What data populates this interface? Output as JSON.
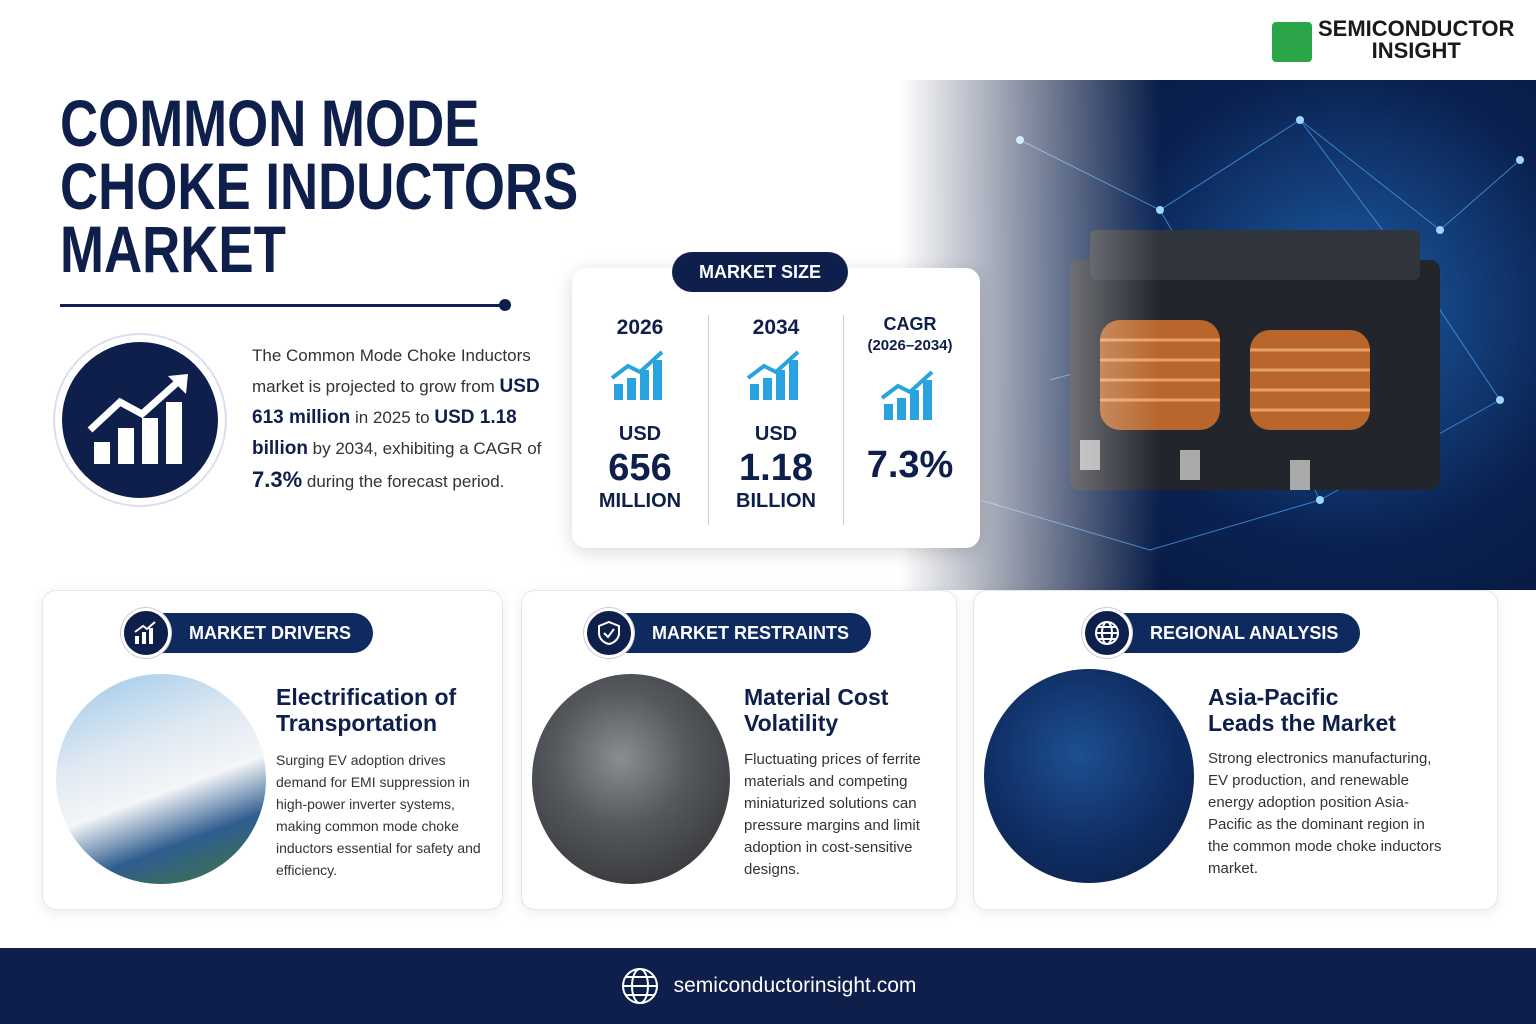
{
  "logo": {
    "line1": "SEMICONDUCTOR",
    "line2": "INSIGHT"
  },
  "title": [
    "COMMON MODE",
    "CHOKE INDUCTORS",
    "MARKET"
  ],
  "intro": {
    "lead": "The Common Mode Choke Inductors market is projected to grow from",
    "start_value": "USD 613 million",
    "start_text": "in 2025 to",
    "end_value": "USD 1.18 billion",
    "end_text": "by 2034,",
    "cagr_text": "exhibiting a CAGR of",
    "cagr_value": "7.3%",
    "tail": "during the forecast period."
  },
  "market_size": {
    "label": "MARKET SIZE",
    "columns": [
      {
        "year": "2026",
        "prefix": "USD",
        "value": "656",
        "unit": "MILLION"
      },
      {
        "year": "2034",
        "prefix": "USD",
        "value": "1.18",
        "unit": "BILLION"
      },
      {
        "year": "CAGR",
        "period": "(2026–2034)",
        "value": "7.3%"
      }
    ]
  },
  "cards": [
    {
      "badge": "MARKET DRIVERS",
      "heading": [
        "Electrification of",
        "Transportation"
      ],
      "body": "Surging EV adoption drives demand for EMI suppression in high-power inverter systems, making common mode choke inductors essential for safety and efficiency."
    },
    {
      "badge": "MARKET RESTRAINTS",
      "heading": [
        "Material Cost",
        "Volatility"
      ],
      "body": "Fluctuating prices of ferrite materials and competing miniaturized solutions can pressure margins and limit adoption in cost-sensitive designs."
    },
    {
      "badge": "REGIONAL ANALYSIS",
      "heading": [
        "Asia-Pacific",
        "Leads the Market"
      ],
      "body": "Strong electronics manufacturing, EV production, and renewable energy adoption position Asia-Pacific as the dominant region in the common mode choke inductors market."
    }
  ],
  "footer": {
    "url": "semiconductorinsight.com"
  }
}
